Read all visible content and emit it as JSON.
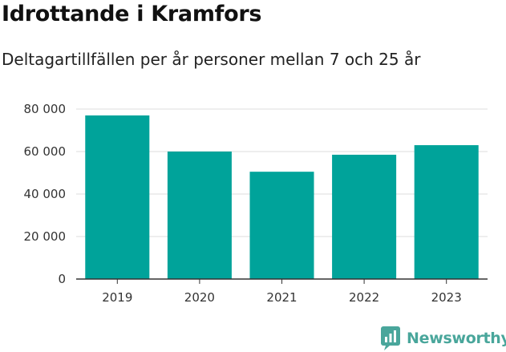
{
  "header": {
    "title": "Idrottande i Kramfors",
    "subtitle": "Deltagartillfällen per år personer mellan 7 och 25 år"
  },
  "brand": {
    "name": "Newsworthy",
    "color": "#49a69b"
  },
  "chart_data": {
    "type": "bar",
    "title": "Idrottande i Kramfors",
    "subtitle": "Deltagartillfällen per år personer mellan 7 och 25 år",
    "xlabel": "",
    "ylabel": "",
    "categories": [
      "2019",
      "2020",
      "2021",
      "2022",
      "2023"
    ],
    "values": [
      77000,
      60000,
      50500,
      58500,
      63000
    ],
    "ylim": [
      0,
      80000
    ],
    "yticks": [
      0,
      20000,
      40000,
      60000,
      80000
    ],
    "ytick_labels": [
      "0",
      "20 000",
      "40 000",
      "60 000",
      "80 000"
    ],
    "bar_color": "#00a39a",
    "grid": true,
    "legend": false
  }
}
